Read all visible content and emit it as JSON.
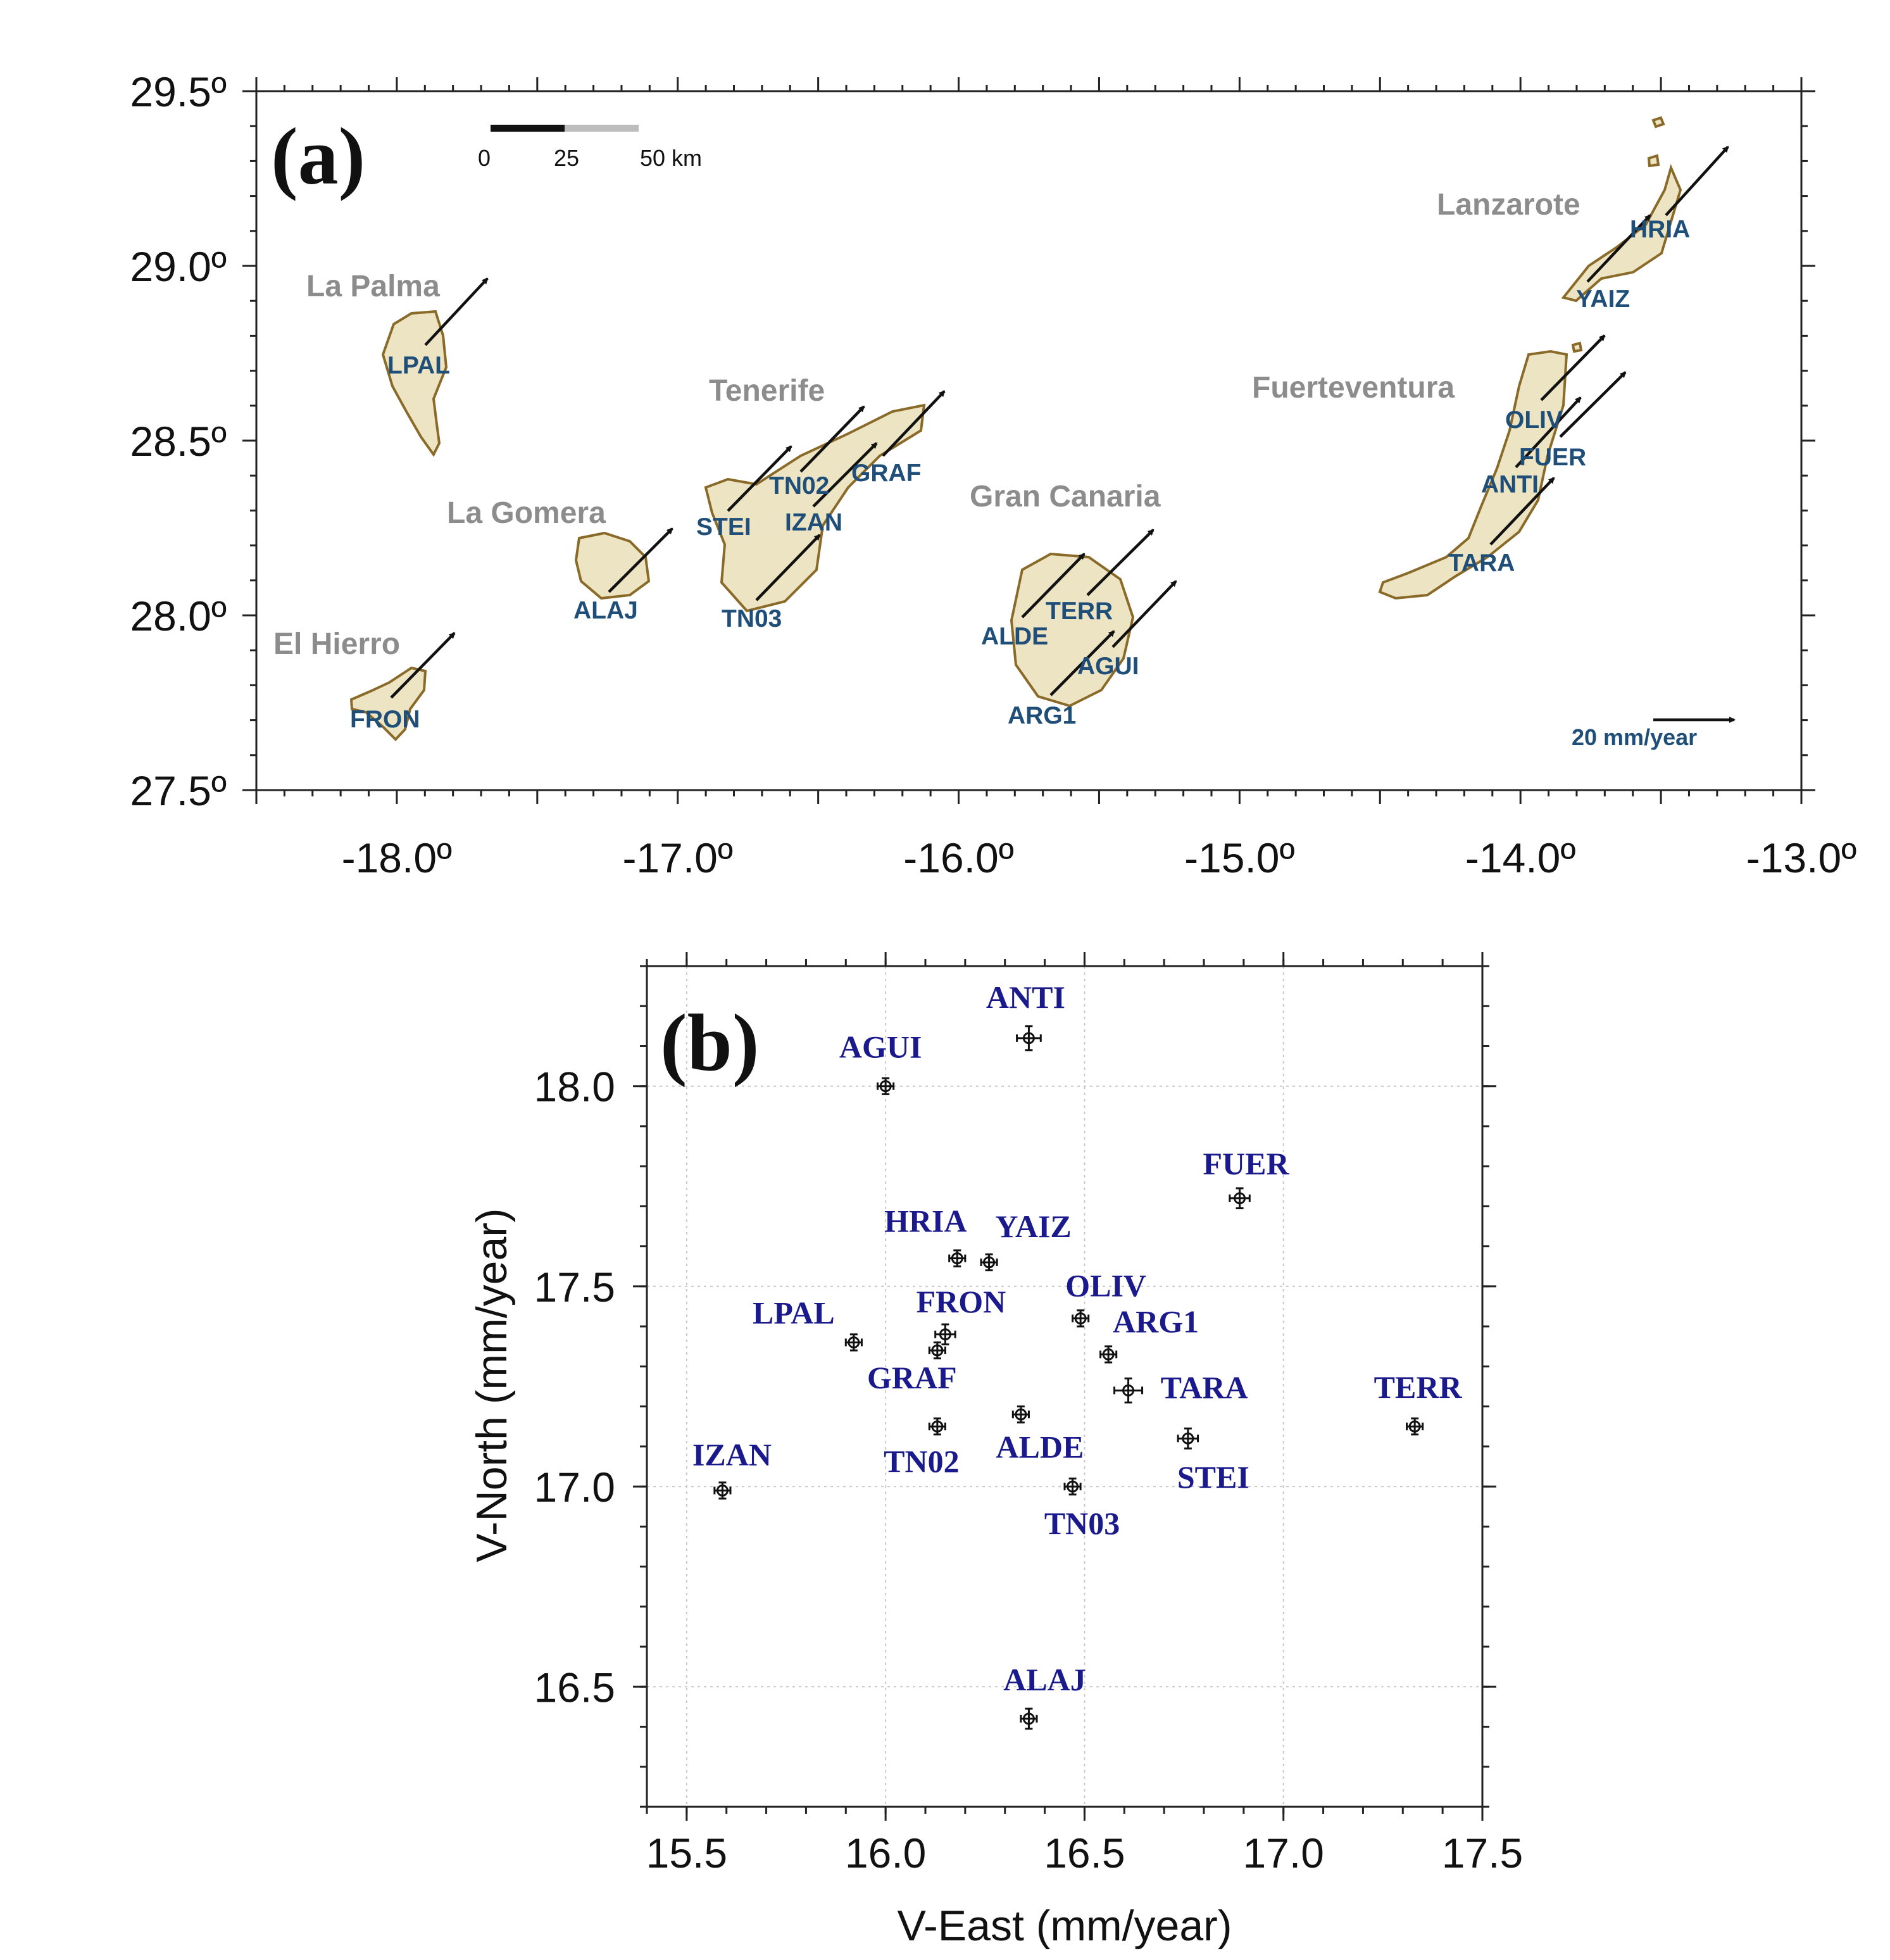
{
  "chart_data": [
    {
      "type": "map",
      "panel_label": "(a)",
      "x_ticks": [
        "-18.0º",
        "-17.0º",
        "-16.0º",
        "-15.0º",
        "-14.0º",
        "-13.0º"
      ],
      "y_ticks": [
        "29.5º",
        "29.0º",
        "28.5º",
        "28.0º",
        "27.5º"
      ],
      "xlim": [
        -18.5,
        -13.0
      ],
      "ylim": [
        27.5,
        29.5
      ],
      "scale_bar": {
        "labels": [
          "0",
          "25",
          "50 km"
        ]
      },
      "velocity_reference": {
        "label": "20 mm/year",
        "value": 20
      },
      "islands": [
        {
          "name": "La Palma",
          "center": [
            -17.88,
            28.67
          ]
        },
        {
          "name": "El Hierro",
          "center": [
            -18.0,
            27.76
          ]
        },
        {
          "name": "La Gomera",
          "center": [
            -17.23,
            28.12
          ]
        },
        {
          "name": "Tenerife",
          "center": [
            -16.55,
            28.32
          ]
        },
        {
          "name": "Gran Canaria",
          "center": [
            -15.6,
            27.95
          ]
        },
        {
          "name": "Fuerteventura",
          "center": [
            -14.05,
            28.37
          ]
        },
        {
          "name": "Lanzarote",
          "center": [
            -13.65,
            29.02
          ]
        }
      ],
      "stations": [
        {
          "name": "LPAL",
          "lon": -17.9,
          "lat": 28.76
        },
        {
          "name": "FRON",
          "lon": -18.0,
          "lat": 27.75
        },
        {
          "name": "ALAJ",
          "lon": -17.25,
          "lat": 28.06
        },
        {
          "name": "STEI",
          "lon": -16.8,
          "lat": 28.3
        },
        {
          "name": "TN02",
          "lon": -16.55,
          "lat": 28.35
        },
        {
          "name": "GRAF",
          "lon": -16.27,
          "lat": 28.45
        },
        {
          "name": "IZAN",
          "lon": -16.5,
          "lat": 28.3
        },
        {
          "name": "TN03",
          "lon": -16.7,
          "lat": 28.05
        },
        {
          "name": "ALDE",
          "lon": -15.7,
          "lat": 27.98
        },
        {
          "name": "TERR",
          "lon": -15.55,
          "lat": 28.05
        },
        {
          "name": "AGUI",
          "lon": -15.45,
          "lat": 27.9
        },
        {
          "name": "ARG1",
          "lon": -15.6,
          "lat": 27.76
        },
        {
          "name": "OLIV",
          "lon": -13.92,
          "lat": 28.62
        },
        {
          "name": "FUER",
          "lon": -13.88,
          "lat": 28.5
        },
        {
          "name": "ANTI",
          "lon": -13.97,
          "lat": 28.42
        },
        {
          "name": "TARA",
          "lon": -14.1,
          "lat": 28.2
        },
        {
          "name": "HRIA",
          "lon": -13.55,
          "lat": 29.13
        },
        {
          "name": "YAIZ",
          "lon": -13.75,
          "lat": 28.95
        }
      ]
    },
    {
      "type": "scatter",
      "panel_label": "(b)",
      "xlabel": "V-East (mm/year)",
      "ylabel": "V-North (mm/year)",
      "xlim": [
        15.4,
        17.5
      ],
      "ylim": [
        16.2,
        18.3
      ],
      "x_ticks": [
        "15.5",
        "16.0",
        "16.5",
        "17.0",
        "17.5"
      ],
      "y_ticks": [
        "16.5",
        "17.0",
        "17.5",
        "18.0"
      ],
      "grid": true,
      "points": [
        {
          "name": "ANTI",
          "x": 16.36,
          "y": 18.12,
          "ex": 0.03,
          "ey": 0.03
        },
        {
          "name": "AGUI",
          "x": 16.0,
          "y": 18.0,
          "ex": 0.02,
          "ey": 0.02
        },
        {
          "name": "FUER",
          "x": 16.89,
          "y": 17.72,
          "ex": 0.025,
          "ey": 0.025
        },
        {
          "name": "HRIA",
          "x": 16.18,
          "y": 17.57,
          "ex": 0.02,
          "ey": 0.02
        },
        {
          "name": "YAIZ",
          "x": 16.26,
          "y": 17.56,
          "ex": 0.02,
          "ey": 0.02
        },
        {
          "name": "OLIV",
          "x": 16.49,
          "y": 17.42,
          "ex": 0.02,
          "ey": 0.02
        },
        {
          "name": "LPAL",
          "x": 15.92,
          "y": 17.36,
          "ex": 0.02,
          "ey": 0.02
        },
        {
          "name": "FRON",
          "x": 16.15,
          "y": 17.38,
          "ex": 0.025,
          "ey": 0.025
        },
        {
          "name": "ARG1",
          "x": 16.56,
          "y": 17.33,
          "ex": 0.02,
          "ey": 0.02
        },
        {
          "name": "GRAF",
          "x": 16.13,
          "y": 17.34,
          "ex": 0.02,
          "ey": 0.02
        },
        {
          "name": "TARA",
          "x": 16.61,
          "y": 17.24,
          "ex": 0.035,
          "ey": 0.03
        },
        {
          "name": "TERR",
          "x": 17.33,
          "y": 17.15,
          "ex": 0.02,
          "ey": 0.02
        },
        {
          "name": "ALDE",
          "x": 16.34,
          "y": 17.18,
          "ex": 0.02,
          "ey": 0.02
        },
        {
          "name": "TN02",
          "x": 16.13,
          "y": 17.15,
          "ex": 0.02,
          "ey": 0.02
        },
        {
          "name": "STEI",
          "x": 16.76,
          "y": 17.12,
          "ex": 0.025,
          "ey": 0.025
        },
        {
          "name": "IZAN",
          "x": 15.59,
          "y": 16.99,
          "ex": 0.02,
          "ey": 0.02
        },
        {
          "name": "TN03",
          "x": 16.47,
          "y": 17.0,
          "ex": 0.02,
          "ey": 0.02
        },
        {
          "name": "ALAJ",
          "x": 16.36,
          "y": 16.42,
          "ex": 0.02,
          "ey": 0.025
        }
      ]
    }
  ]
}
